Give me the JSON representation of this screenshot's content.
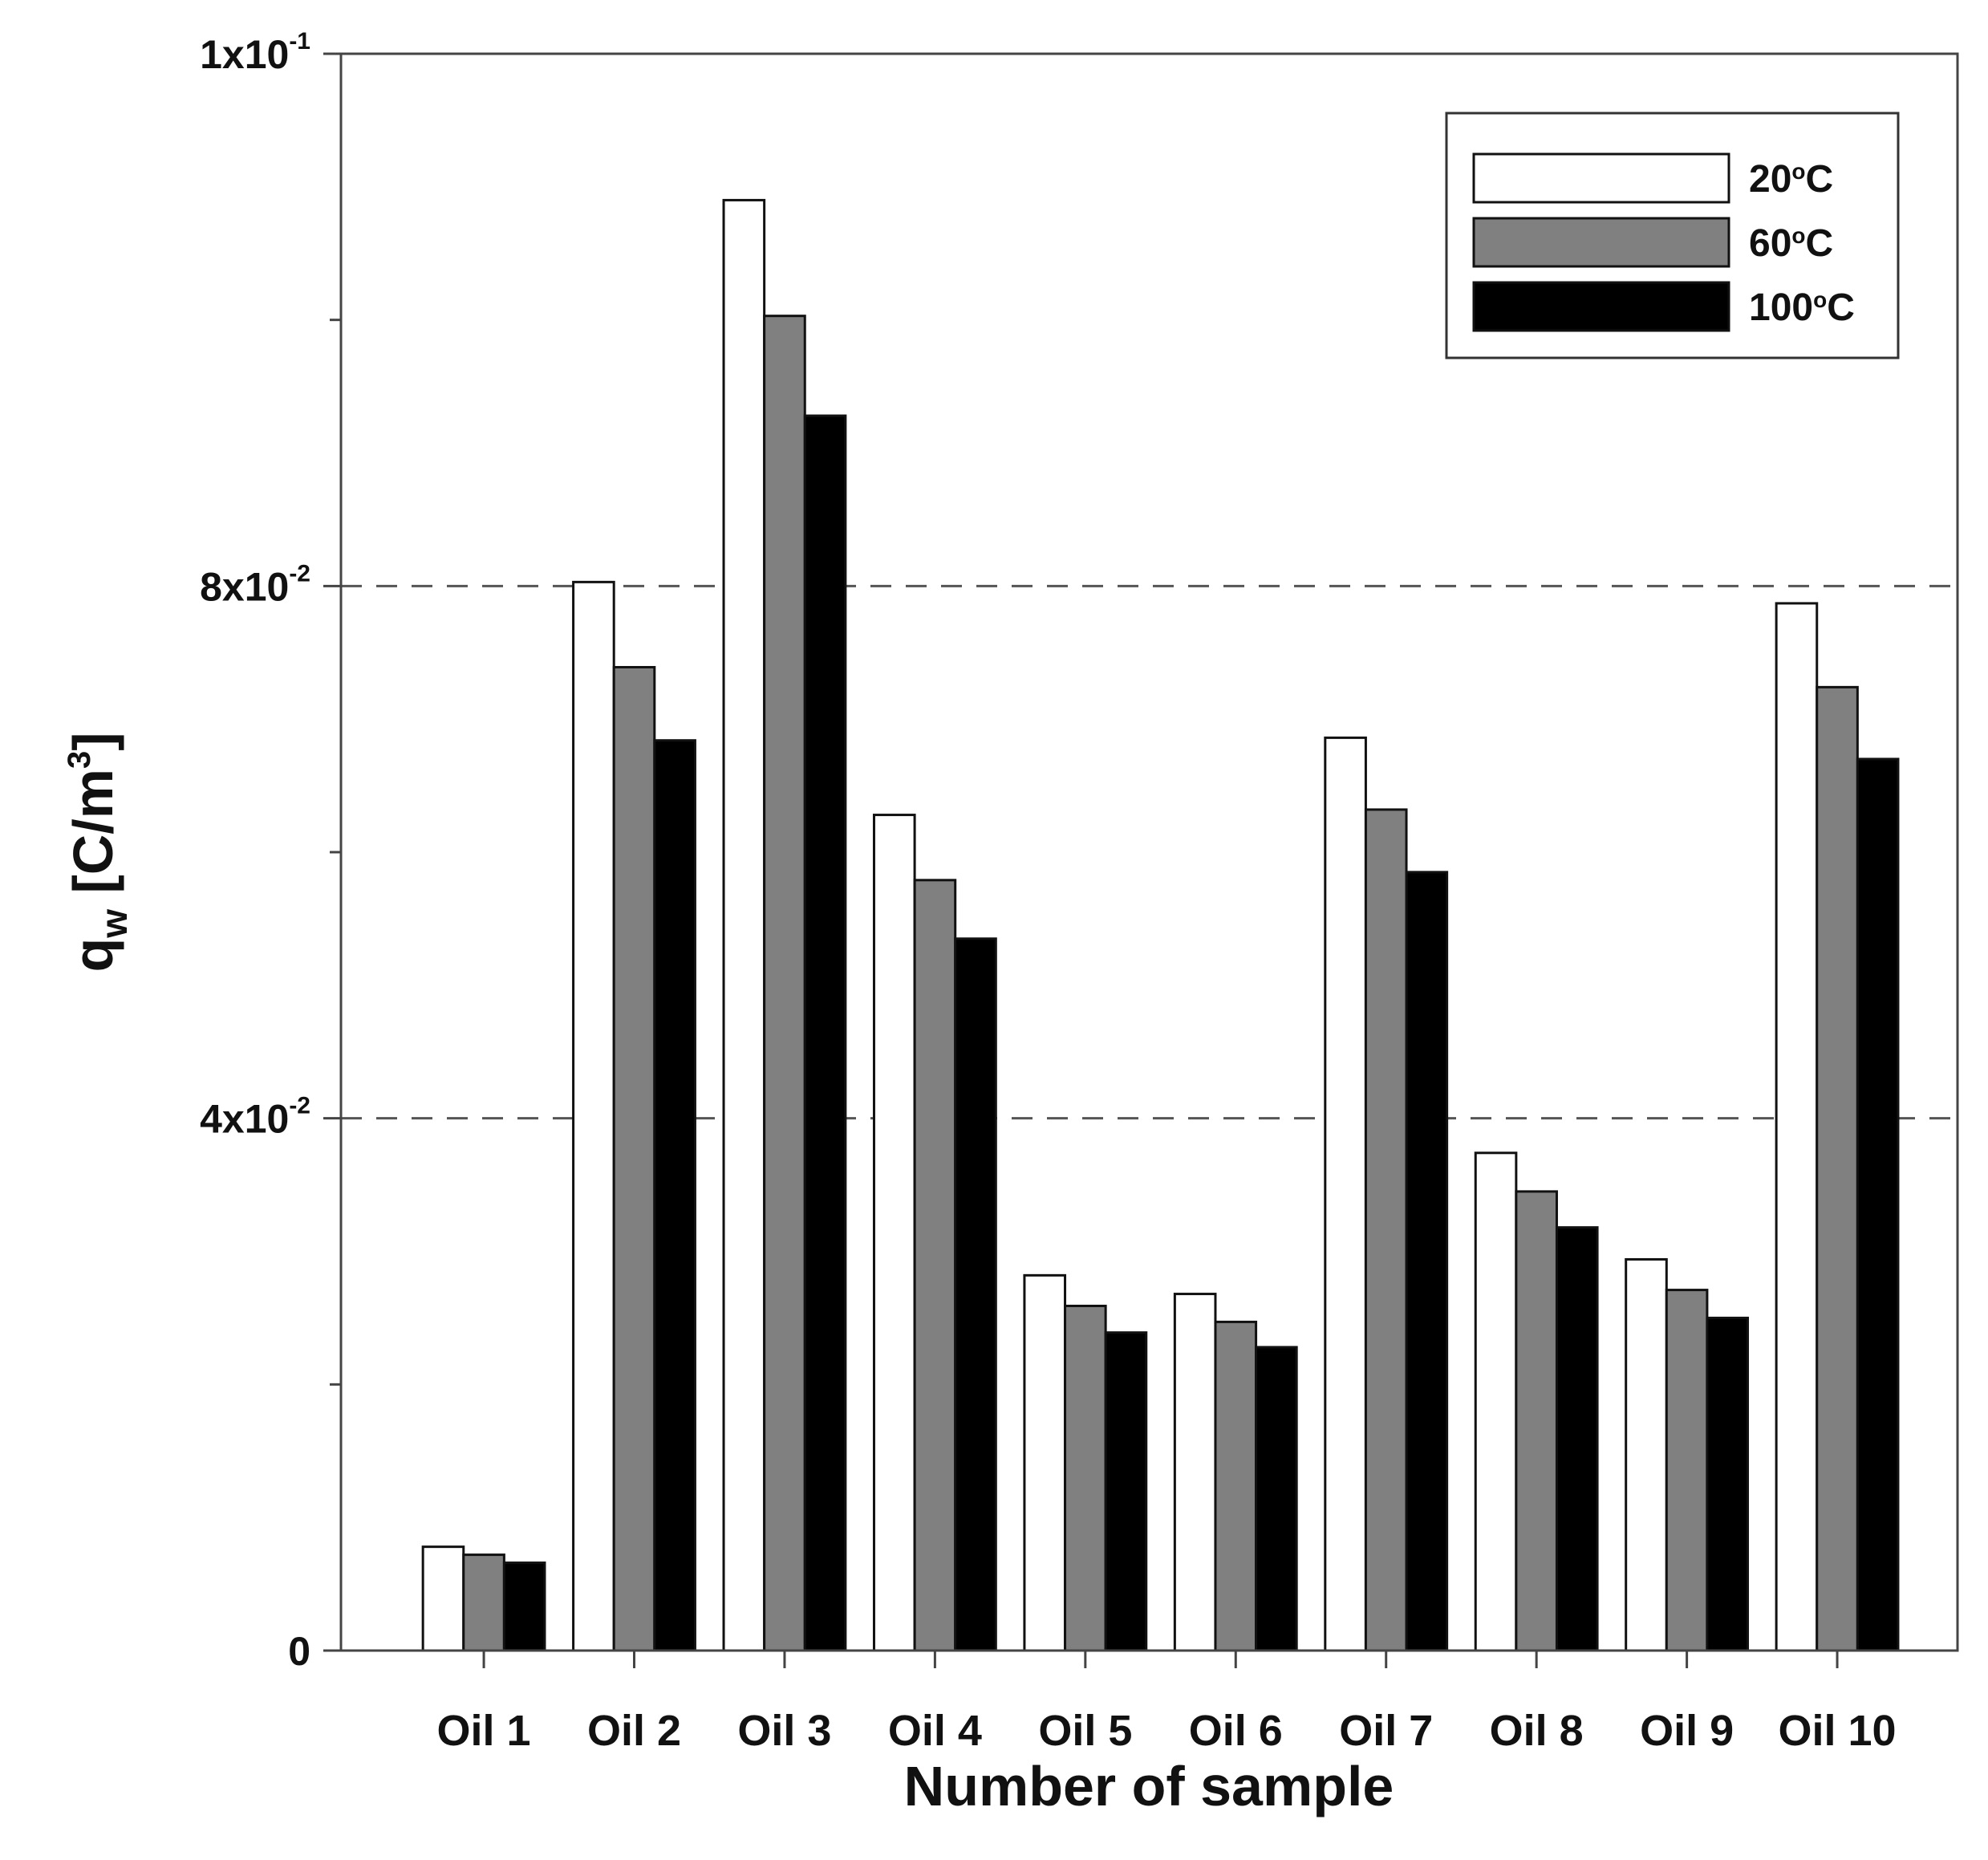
{
  "chart_data": {
    "type": "bar",
    "title": "",
    "xlabel": "Number of sample",
    "ylabel": {
      "base": "q",
      "sub": "w",
      "unit": " [C/m",
      "unit_sup": "3",
      "unit_end": "]"
    },
    "ylim": [
      0,
      0.12
    ],
    "y_ticks": [
      {
        "value": 0,
        "mantissa": "0",
        "exponent": ""
      },
      {
        "value": 0.04,
        "mantissa": "4x10",
        "exponent": "-2"
      },
      {
        "value": 0.08,
        "mantissa": "8x10",
        "exponent": "-2"
      },
      {
        "value": 0.12,
        "mantissa": "1x10",
        "exponent": "-1"
      }
    ],
    "minor_ticks": [
      0.02,
      0.06,
      0.1
    ],
    "dashed_gridlines": [
      0.04,
      0.08
    ],
    "legend_position": "top-right",
    "categories": [
      "Oil 1",
      "Oil 2",
      "Oil 3",
      "Oil 4",
      "Oil 5",
      "Oil 6",
      "Oil 7",
      "Oil 8",
      "Oil 9",
      "Oil 10"
    ],
    "series": [
      {
        "name": "20",
        "name_sup": "o",
        "name_suffix": "C",
        "color": "#ffffff",
        "values": [
          0.0078,
          0.0803,
          0.109,
          0.0628,
          0.0282,
          0.0268,
          0.0686,
          0.0374,
          0.0294,
          0.0787
        ]
      },
      {
        "name": "60",
        "name_sup": "o",
        "name_suffix": "C",
        "color": "#808080",
        "values": [
          0.0072,
          0.0739,
          0.1003,
          0.0579,
          0.0259,
          0.0247,
          0.0632,
          0.0345,
          0.0271,
          0.0724
        ]
      },
      {
        "name": "100",
        "name_sup": "o",
        "name_suffix": "C",
        "color": "#000000",
        "values": [
          0.0066,
          0.0684,
          0.0928,
          0.0535,
          0.0239,
          0.0228,
          0.0585,
          0.0318,
          0.025,
          0.067
        ]
      }
    ]
  }
}
